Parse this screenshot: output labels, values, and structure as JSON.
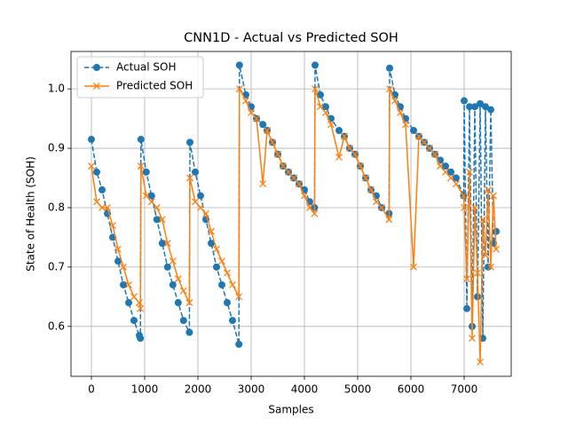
{
  "chart_data": {
    "type": "line",
    "title": "CNN1D - Actual vs Predicted SOH",
    "xlabel": "Samples",
    "ylabel": "State of Health (SOH)",
    "x": [
      0,
      100,
      200,
      300,
      400,
      500,
      600,
      700,
      800,
      900,
      920,
      930,
      1030,
      1130,
      1230,
      1330,
      1430,
      1530,
      1630,
      1730,
      1840,
      1850,
      1950,
      2050,
      2150,
      2250,
      2350,
      2450,
      2550,
      2650,
      2770,
      2780,
      2900,
      3000,
      3100,
      3220,
      3300,
      3400,
      3500,
      3600,
      3700,
      3800,
      3900,
      4000,
      4100,
      4190,
      4200,
      4300,
      4400,
      4500,
      4650,
      4750,
      4850,
      4950,
      5050,
      5150,
      5250,
      5350,
      5450,
      5590,
      5600,
      5700,
      5800,
      5900,
      6050,
      6150,
      6250,
      6350,
      6450,
      6550,
      6650,
      6750,
      6850,
      6990,
      7000,
      7050,
      7100,
      7150,
      7200,
      7250,
      7300,
      7350,
      7400,
      7450,
      7500,
      7550,
      7600
    ],
    "series": [
      {
        "name": "Actual SOH",
        "color": "#1f77b4",
        "marker": "o",
        "linestyle": "dashed",
        "values": [
          0.915,
          0.86,
          0.83,
          0.79,
          0.75,
          0.71,
          0.67,
          0.64,
          0.61,
          0.585,
          0.58,
          0.915,
          0.86,
          0.82,
          0.78,
          0.74,
          0.7,
          0.67,
          0.64,
          0.61,
          0.59,
          0.91,
          0.86,
          0.82,
          0.78,
          0.74,
          0.7,
          0.67,
          0.64,
          0.61,
          0.57,
          1.04,
          0.99,
          0.97,
          0.95,
          0.94,
          0.93,
          0.91,
          0.89,
          0.87,
          0.86,
          0.85,
          0.84,
          0.83,
          0.81,
          0.8,
          1.04,
          0.99,
          0.97,
          0.95,
          0.93,
          0.92,
          0.9,
          0.89,
          0.87,
          0.85,
          0.83,
          0.82,
          0.8,
          0.79,
          1.035,
          0.99,
          0.97,
          0.95,
          0.93,
          0.92,
          0.91,
          0.9,
          0.89,
          0.88,
          0.87,
          0.86,
          0.85,
          0.82,
          0.98,
          0.63,
          0.97,
          0.6,
          0.97,
          0.65,
          0.975,
          0.58,
          0.97,
          0.7,
          0.965,
          0.74,
          0.76
        ]
      },
      {
        "name": "Predicted SOH",
        "color": "#ff7f0e",
        "marker": "x",
        "linestyle": "solid",
        "values": [
          0.87,
          0.81,
          0.8,
          0.8,
          0.77,
          0.73,
          0.7,
          0.67,
          0.65,
          0.64,
          0.63,
          0.87,
          0.82,
          0.81,
          0.8,
          0.78,
          0.74,
          0.71,
          0.68,
          0.66,
          0.64,
          0.85,
          0.81,
          0.8,
          0.79,
          0.76,
          0.73,
          0.71,
          0.69,
          0.67,
          0.65,
          1.0,
          0.98,
          0.96,
          0.95,
          0.84,
          0.93,
          0.91,
          0.89,
          0.87,
          0.86,
          0.85,
          0.84,
          0.82,
          0.8,
          0.79,
          1.0,
          0.97,
          0.96,
          0.94,
          0.885,
          0.92,
          0.9,
          0.89,
          0.87,
          0.85,
          0.83,
          0.81,
          0.8,
          0.78,
          1.0,
          0.98,
          0.96,
          0.94,
          0.7,
          0.92,
          0.91,
          0.9,
          0.89,
          0.87,
          0.86,
          0.85,
          0.84,
          0.82,
          0.8,
          0.68,
          0.86,
          0.58,
          0.8,
          0.69,
          0.54,
          0.78,
          0.72,
          0.83,
          0.7,
          0.82,
          0.73
        ]
      }
    ],
    "xlim": [
      -383,
      7883
    ],
    "ylim": [
      0.516,
      1.063
    ],
    "xticks": [
      0,
      1000,
      2000,
      3000,
      4000,
      5000,
      6000,
      7000
    ],
    "yticks": [
      0.6,
      0.7,
      0.8,
      0.9,
      {
        "value": 1.0,
        "label": "1.0"
      }
    ],
    "grid": true,
    "legend": "upper left"
  }
}
